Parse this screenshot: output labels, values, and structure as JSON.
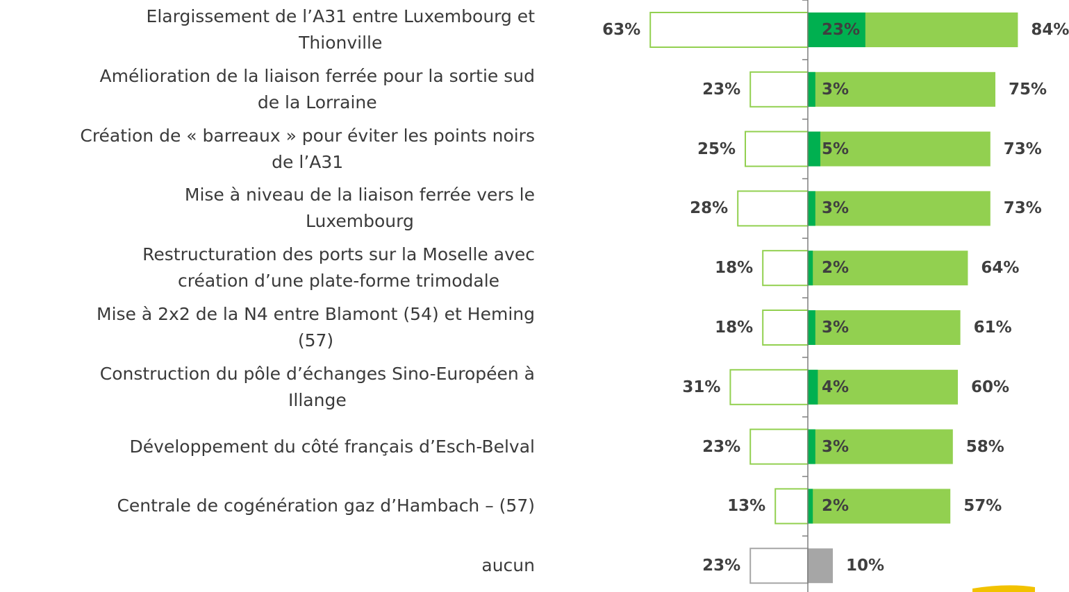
{
  "chart_data": {
    "type": "diverging-bar",
    "categories": [
      "Elargissement de l’A31 entre Luxembourg et\nThionville",
      "Amélioration de la liaison ferrée pour la sortie sud\nde la Lorraine",
      "Création de « barreaux » pour éviter les points noirs\nde l’A31",
      "Mise à niveau de la liaison ferrée vers le\nLuxembourg",
      "Restructuration des ports sur la Moselle avec\ncréation d’une plate-forme trimodale",
      "Mise à 2x2 de la N4 entre Blamont (54) et Heming\n(57)",
      "Construction du pôle d’échanges Sino-Européen à\nIllange",
      "Développement du côté français d’Esch-Belval",
      "Centrale de cogénération gaz d’Hambach – (57)",
      "aucun"
    ],
    "series": [
      {
        "side": "left",
        "colors": [
          "#92d050",
          "#92d050",
          "#92d050",
          "#92d050",
          "#92d050",
          "#92d050",
          "#92d050",
          "#92d050",
          "#92d050",
          "#a6a6a6"
        ],
        "values": [
          63,
          23,
          25,
          28,
          18,
          18,
          31,
          23,
          13,
          23
        ],
        "value_labels": [
          "63%",
          "23%",
          "25%",
          "28%",
          "18%",
          "18%",
          "31%",
          "23%",
          "13%",
          "23%"
        ]
      },
      {
        "side": "right",
        "colors": [
          "#92d050",
          "#92d050",
          "#92d050",
          "#92d050",
          "#92d050",
          "#92d050",
          "#92d050",
          "#92d050",
          "#92d050",
          "#a6a6a6"
        ],
        "values": [
          84,
          75,
          73,
          73,
          64,
          61,
          60,
          58,
          57,
          10
        ],
        "value_labels": [
          "84%",
          "75%",
          "73%",
          "73%",
          "64%",
          "61%",
          "60%",
          "58%",
          "57%",
          "10%"
        ]
      },
      {
        "side": "inner",
        "color": "#00b050",
        "values": [
          23,
          3,
          5,
          3,
          2,
          3,
          4,
          3,
          2,
          null
        ],
        "value_labels": [
          "23%",
          "3%",
          "5%",
          "3%",
          "2%",
          "3%",
          "4%",
          "3%",
          "2%",
          null
        ]
      }
    ]
  }
}
